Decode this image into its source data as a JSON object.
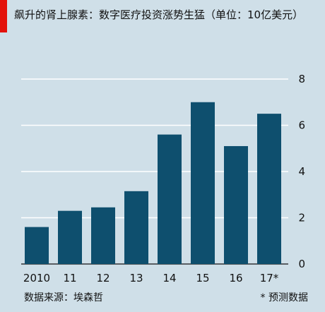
{
  "chart_data": {
    "type": "bar",
    "title": "飙升的肾上腺素：数字医疗投资涨势生猛（单位：10亿美元）",
    "categories": [
      "2010",
      "11",
      "12",
      "13",
      "14",
      "15",
      "16",
      "17*"
    ],
    "values": [
      1.6,
      2.3,
      2.45,
      3.15,
      5.6,
      7.0,
      5.1,
      6.5
    ],
    "ylim": [
      0,
      8
    ],
    "yticks": [
      0,
      2,
      4,
      6,
      8
    ],
    "y_axis_position": "right",
    "grid": true,
    "bar_color": "#0e4f6e",
    "source": "数据来源：埃森哲",
    "note": "* 预测数据"
  }
}
